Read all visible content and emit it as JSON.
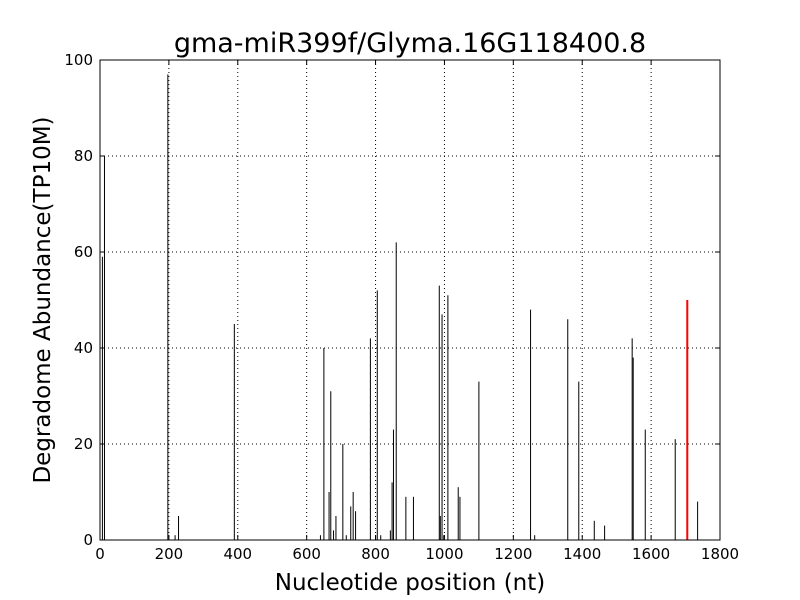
{
  "chart_data": {
    "type": "bar",
    "title": "gma-miR399f/Glyma.16G118400.8",
    "xlabel": "Nucleotide position (nt)",
    "ylabel": "Degradome Abundance(TP10M)",
    "xlim": [
      0,
      1800
    ],
    "ylim": [
      0,
      100
    ],
    "xticks": [
      0,
      200,
      400,
      600,
      800,
      1000,
      1200,
      1400,
      1600,
      1800
    ],
    "yticks": [
      0,
      20,
      40,
      60,
      80,
      100
    ],
    "grid": true,
    "colors": {
      "default": "#000000",
      "highlight": "#ff0000"
    },
    "series": [
      {
        "values": [
          [
            7,
            59
          ],
          [
            13,
            80
          ],
          [
            197,
            97
          ],
          [
            218,
            1
          ],
          [
            228,
            5
          ],
          [
            390,
            45
          ],
          [
            640,
            1
          ],
          [
            650,
            40
          ],
          [
            665,
            10
          ],
          [
            670,
            31
          ],
          [
            678,
            2
          ],
          [
            685,
            5
          ],
          [
            705,
            20
          ],
          [
            715,
            1
          ],
          [
            728,
            7
          ],
          [
            735,
            10
          ],
          [
            742,
            6
          ],
          [
            785,
            42
          ],
          [
            800,
            1
          ],
          [
            805,
            52
          ],
          [
            815,
            1
          ],
          [
            843,
            2
          ],
          [
            848,
            12
          ],
          [
            852,
            23
          ],
          [
            860,
            62
          ],
          [
            888,
            9
          ],
          [
            910,
            9
          ],
          [
            985,
            53
          ],
          [
            988,
            5
          ],
          [
            993,
            47
          ],
          [
            998,
            1
          ],
          [
            1010,
            51
          ],
          [
            1040,
            11
          ],
          [
            1045,
            9
          ],
          [
            1100,
            33
          ],
          [
            1250,
            48
          ],
          [
            1262,
            1
          ],
          [
            1358,
            46
          ],
          [
            1390,
            33
          ],
          [
            1435,
            4
          ],
          [
            1465,
            3
          ],
          [
            1545,
            42
          ],
          [
            1548,
            38
          ],
          [
            1583,
            23
          ],
          [
            1670,
            21
          ],
          [
            1735,
            8
          ]
        ]
      },
      {
        "highlight": true,
        "values": [
          [
            1705,
            50
          ]
        ]
      }
    ]
  }
}
